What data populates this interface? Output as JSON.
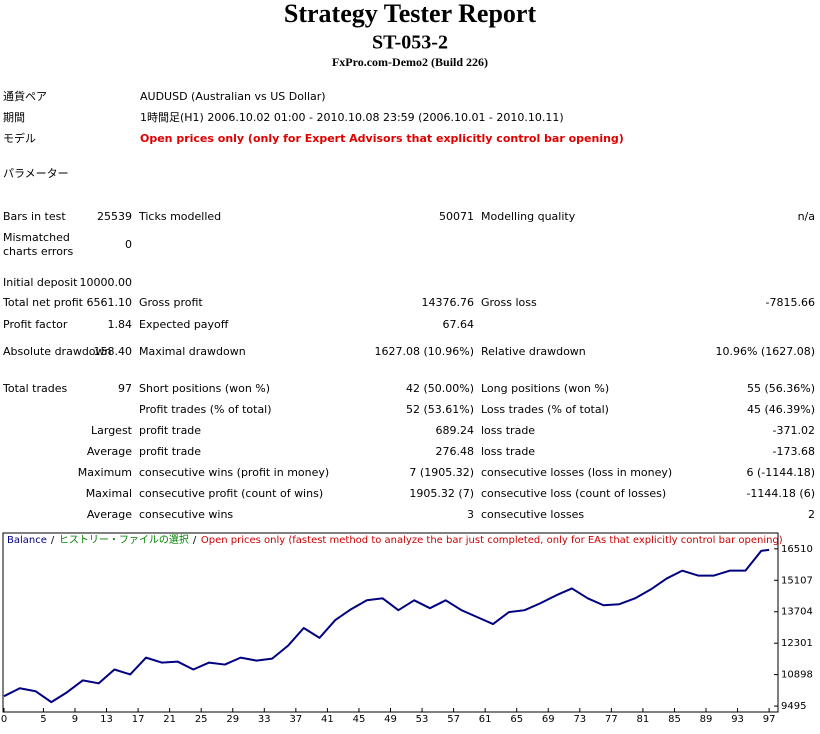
{
  "header": {
    "title": "Strategy Tester Report",
    "subtitle": "ST-053-2",
    "server": "FxPro.com-Demo2 (Build 226)"
  },
  "info": [
    {
      "label": "通貨ペア",
      "value": "AUDUSD (Australian vs US Dollar)"
    },
    {
      "label": "期間",
      "value": "1時間足(H1) 2006.10.02 01:00 - 2010.10.08 23:59 (2006.10.01 - 2010.10.11)"
    },
    {
      "label": "モデル",
      "value": "Open prices only (only for Expert Advisors that explicitly control bar opening)"
    },
    {
      "label": "パラメーター"
    }
  ],
  "stats": [
    [
      "Bars in test",
      "25539",
      "Ticks modelled",
      "50071",
      "Modelling quality",
      "n/a"
    ],
    [
      "Mismatched charts errors",
      "0",
      null,
      null,
      null,
      null
    ],
    [
      "Initial deposit",
      "10000.00",
      null,
      null,
      null,
      null
    ],
    [
      "Total net profit",
      "6561.10",
      "Gross profit",
      "14376.76",
      "Gross loss",
      "-7815.66"
    ],
    [
      "Profit factor",
      "1.84",
      "Expected payoff",
      "67.64",
      null,
      null
    ],
    [
      "Absolute drawdown",
      "158.40",
      "Maximal drawdown",
      "1627.08 (10.96%)",
      "Relative drawdown",
      "10.96% (1627.08)"
    ],
    [
      "Total trades",
      "97",
      "Short positions (won %)",
      "42 (50.00%)",
      "Long positions (won %)",
      "55 (56.36%)"
    ],
    [
      null,
      null,
      "Profit trades (% of total)",
      "52 (53.61%)",
      "Loss trades (% of total)",
      "45 (46.39%)"
    ],
    [
      null,
      "Largest",
      "profit trade",
      "689.24",
      "loss trade",
      "-371.02"
    ],
    [
      null,
      "Average",
      "profit trade",
      "276.48",
      "loss trade",
      "-173.68"
    ],
    [
      null,
      "Maximum",
      "consecutive wins (profit in money)",
      "7 (1905.32)",
      "consecutive losses (loss in money)",
      "6 (-1144.18)"
    ],
    [
      null,
      "Maximal",
      "consecutive profit (count of wins)",
      "1905.32 (7)",
      "consecutive loss (count of losses)",
      "-1144.18 (6)"
    ],
    [
      null,
      "Average",
      "consecutive wins",
      "3",
      "consecutive losses",
      "2"
    ]
  ],
  "chart_data": {
    "type": "line",
    "legend": [
      {
        "text": "Balance",
        "color": "#000080"
      },
      {
        "text": "ヒストリー・ファイルの選択",
        "color": "#008000"
      },
      {
        "text": "Open prices only (fastest method to analyze the bar just completed, only for EAs that explicitly control bar opening)",
        "color": "#cc0000"
      }
    ],
    "x": [
      0,
      2,
      4,
      6,
      8,
      10,
      12,
      14,
      16,
      18,
      20,
      22,
      24,
      26,
      28,
      30,
      32,
      34,
      36,
      38,
      40,
      42,
      44,
      46,
      48,
      50,
      52,
      54,
      56,
      58,
      60,
      62,
      64,
      66,
      68,
      70,
      72,
      74,
      76,
      78,
      80,
      82,
      84,
      86,
      88,
      90,
      92,
      94,
      96,
      97
    ],
    "series": [
      {
        "name": "Balance",
        "color": "#000080",
        "values": [
          9936,
          10290,
          10157,
          9671,
          10113,
          10642,
          10510,
          11127,
          10906,
          11656,
          11435,
          11480,
          11127,
          11435,
          11347,
          11656,
          11524,
          11612,
          12185,
          12979,
          12538,
          13332,
          13817,
          14214,
          14302,
          13773,
          14214,
          13862,
          14214,
          13773,
          13464,
          13155,
          13685,
          13773,
          14082,
          14435,
          14743,
          14302,
          13994,
          14038,
          14302,
          14699,
          15184,
          15537,
          15316,
          15316,
          15537,
          15537,
          16419,
          16463
        ]
      }
    ],
    "xlim": [
      0,
      98
    ],
    "xticks": [
      0,
      5,
      9,
      13,
      17,
      21,
      25,
      29,
      33,
      37,
      41,
      45,
      49,
      53,
      57,
      61,
      65,
      69,
      73,
      77,
      81,
      85,
      89,
      93,
      97
    ],
    "ylim": [
      9275,
      17172
    ],
    "yticks": [
      9495,
      10898,
      12301,
      13704,
      15107,
      16510
    ]
  }
}
